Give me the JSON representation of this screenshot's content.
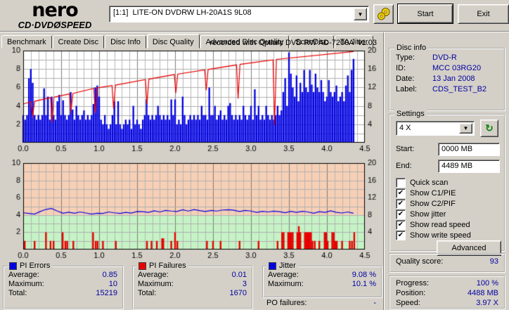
{
  "window": {
    "logo_top": "nero",
    "logo_cd": "CD·DVD",
    "logo_disc": "Ø",
    "logo_speed": "SPEED",
    "drive_select": "[1:1]  LITE-ON DVDRW LH-20A1S 9L08",
    "start_button": "Start",
    "exit_button": "Exit"
  },
  "icons": {
    "dropdown_arrow": "▼",
    "refresh": "↻",
    "check": "✔"
  },
  "colors": {
    "value_text": "#0000a0",
    "chart_blue": "#0000e0",
    "chart_red": "#e80000",
    "zone_green": "#c5f3c5",
    "zone_pink": "#f7cfb5",
    "window_gray": "#d4d0c8"
  },
  "tabs": {
    "items": [
      "Benchmark",
      "Create Disc",
      "Disc Info",
      "Disc Quality",
      "Advanced Disc Quality",
      "ScanDisc",
      "TA Jitter"
    ],
    "active": "Disc Quality"
  },
  "chart_title": "recorded with Optiarc DVD RW AD-7200A  v1.03",
  "disc_info": {
    "title": "Disc info",
    "rows": [
      {
        "label": "Type:",
        "value": "DVD-R"
      },
      {
        "label": "ID:",
        "value": "MCC 03RG20"
      },
      {
        "label": "Date:",
        "value": "13 Jan 2008"
      },
      {
        "label": "Label:",
        "value": "CDS_TEST_B2"
      }
    ]
  },
  "settings": {
    "title": "Settings",
    "speed_value": "4 X",
    "start_label": "Start:",
    "start_value": "0000 MB",
    "end_label": "End:",
    "end_value": "4489 MB",
    "checkboxes": [
      {
        "label": "Quick scan",
        "checked": false,
        "mark": ""
      },
      {
        "label": "Show C1/PIE",
        "checked": true,
        "mark": "✔"
      },
      {
        "label": "Show C2/PIF",
        "checked": true,
        "mark": "✔"
      },
      {
        "label": "Show jitter",
        "checked": true,
        "mark": "✔"
      },
      {
        "label": "Show read speed",
        "checked": true,
        "mark": "✔"
      },
      {
        "label": "Show write speed",
        "checked": true,
        "mark": "✔"
      }
    ],
    "advanced_button": "Advanced"
  },
  "quality": {
    "label": "Quality score:",
    "value": "93"
  },
  "progress": {
    "rows": [
      {
        "label": "Progress:",
        "value": "100 %"
      },
      {
        "label": "Position:",
        "value": "4488 MB"
      },
      {
        "label": "Speed:",
        "value": "3.97 X"
      }
    ]
  },
  "legend_panels": [
    {
      "title": "PI Errors",
      "color": "#0000e0",
      "rows": [
        {
          "label": "Average:",
          "value": "0.85"
        },
        {
          "label": "Maximum:",
          "value": "10"
        },
        {
          "label": "Total:",
          "value": "15219"
        }
      ]
    },
    {
      "title": "PI Failures",
      "color": "#e80000",
      "rows": [
        {
          "label": "Average:",
          "value": "0.01"
        },
        {
          "label": "Maximum:",
          "value": "3"
        },
        {
          "label": "Total:",
          "value": "1670"
        }
      ]
    },
    {
      "title": "Jitter",
      "color": "#0000e0",
      "rows": [
        {
          "label": "Average:",
          "value": "9.08 %"
        },
        {
          "label": "Maximum:",
          "value": "10.1 %"
        }
      ],
      "footer": {
        "label": "PO failures:",
        "value": "-"
      }
    }
  ],
  "chart_data": [
    {
      "type": "bar",
      "title": "recorded with Optiarc DVD RW AD-7200A  v1.03",
      "x_range": [
        0,
        4.5
      ],
      "x_ticks": [
        0,
        0.5,
        1,
        1.5,
        2,
        2.5,
        3,
        3.5,
        4,
        4.5
      ],
      "x_minor": 0.1,
      "y_left": {
        "range": [
          0,
          10
        ],
        "ticks": [
          2,
          4,
          6,
          8,
          10
        ]
      },
      "y_right": {
        "range": [
          0,
          20
        ],
        "ticks": [
          4,
          8,
          12,
          16,
          20
        ]
      },
      "stats": {
        "pi_errors_average": 0.85,
        "pi_errors_maximum": 10,
        "pi_errors_total": 15219
      },
      "series": [
        {
          "name": "PI Errors",
          "kind": "bars-dense",
          "axis": "left",
          "color": "#0000e0",
          "start": 0,
          "dx": 0.025,
          "heights": [
            3,
            2.5,
            3,
            7,
            8,
            6.5,
            3,
            2.5,
            3,
            2.5,
            3,
            5.9,
            3,
            5,
            2.5,
            5,
            3,
            2.5,
            4.5,
            5.2,
            3,
            4.6,
            3,
            2.5,
            3,
            5.5,
            3.6,
            2.5,
            4,
            3,
            2.5,
            3,
            3.5,
            2.5,
            3,
            2.5,
            3,
            4.2,
            6,
            6.2,
            5,
            2.5,
            2,
            3,
            2,
            1.5,
            2,
            3,
            4.5,
            2,
            4.5,
            2,
            1.5,
            2,
            2.5,
            2,
            2.5,
            1.5,
            4,
            2,
            2.5,
            2,
            1.5,
            2.5,
            3,
            4.7,
            3,
            2.5,
            3,
            2.5,
            3,
            4,
            3,
            2.5,
            3,
            2.5,
            3,
            2.5,
            4.7,
            3,
            4.7,
            2,
            2.5,
            2,
            5,
            3,
            2,
            2.5,
            3,
            2.5,
            3,
            2.5,
            3,
            2.5,
            4,
            3,
            3,
            2.5,
            6,
            3,
            3,
            4,
            2.5,
            3,
            3.5,
            2.5,
            3,
            2.5,
            4,
            4.3,
            3,
            2.5,
            3,
            2.5,
            3,
            2.5,
            4,
            3,
            2.5,
            3,
            4,
            2.5,
            5.8,
            3,
            4,
            2.5,
            3,
            2.5,
            4,
            3,
            2.5,
            3,
            2.5,
            3,
            4,
            3,
            3.5,
            5.5,
            7,
            4,
            9.8,
            7.5,
            6,
            5,
            7.3,
            4.5,
            6.5,
            5.5,
            7.9,
            6,
            5.5,
            7.9,
            6.3,
            5.5,
            7.5,
            6,
            5.5,
            6.8,
            5.5,
            4.5,
            5,
            6.8,
            5.5,
            5,
            5.5,
            6.2,
            4.5,
            5,
            5.5,
            4.5,
            6.2,
            7.3,
            5.5,
            7.9,
            9.1
          ]
        },
        {
          "name": "Write speed",
          "kind": "line",
          "axis": "right",
          "color": "#e80000",
          "points": [
            [
              0,
              8.4
            ],
            [
              0.1,
              8.9
            ],
            [
              0.125,
              5.8
            ],
            [
              0.15,
              9.0
            ],
            [
              0.36,
              9.8
            ],
            [
              0.38,
              4.4
            ],
            [
              0.405,
              9.9
            ],
            [
              0.61,
              10.6
            ],
            [
              0.63,
              7.0
            ],
            [
              0.655,
              10.7
            ],
            [
              0.93,
              11.8
            ],
            [
              0.95,
              6.4
            ],
            [
              0.975,
              11.9
            ],
            [
              1.17,
              12.4
            ],
            [
              1.19,
              7.4
            ],
            [
              1.215,
              12.5
            ],
            [
              1.61,
              13.7
            ],
            [
              1.63,
              8.4
            ],
            [
              1.655,
              13.8
            ],
            [
              1.99,
              14.8
            ],
            [
              2.01,
              10.8
            ],
            [
              2.035,
              14.9
            ],
            [
              2.39,
              15.8
            ],
            [
              2.41,
              11.4
            ],
            [
              2.435,
              15.9
            ],
            [
              2.81,
              16.9
            ],
            [
              2.83,
              9.6
            ],
            [
              2.855,
              17.0
            ],
            [
              3.29,
              18.0
            ],
            [
              3.31,
              3.8
            ],
            [
              3.335,
              18.1
            ],
            [
              4.35,
              19.8
            ]
          ]
        }
      ]
    },
    {
      "type": "bar",
      "x_range": [
        0,
        4.5
      ],
      "x_ticks": [
        0,
        0.5,
        1,
        1.5,
        2,
        2.5,
        3,
        3.5,
        4,
        4.5
      ],
      "x_minor": 0.1,
      "y_left": {
        "range": [
          0,
          10
        ],
        "ticks": [
          2,
          4,
          6,
          8,
          10
        ]
      },
      "y_right": {
        "range": [
          0,
          20
        ],
        "ticks": [
          4,
          8,
          12,
          16,
          20
        ]
      },
      "zones": [
        {
          "from": 0,
          "to": 4,
          "color": "#c5f3c5"
        },
        {
          "from": 4,
          "to": 10,
          "color": "#f7cfb5"
        }
      ],
      "stats": {
        "pi_failures_average": 0.01,
        "pi_failures_maximum": 3,
        "pi_failures_total": 1670,
        "jitter_average_pct": 9.08,
        "jitter_maximum_pct": 10.1
      },
      "series": [
        {
          "name": "PI Failures",
          "kind": "bars",
          "axis": "left",
          "color": "#e80000",
          "points": [
            [
              0.02,
              1
            ],
            [
              0.15,
              1
            ],
            [
              0.3,
              2
            ],
            [
              0.36,
              1
            ],
            [
              0.4,
              1
            ],
            [
              0.52,
              2
            ],
            [
              0.555,
              1
            ],
            [
              0.58,
              1
            ],
            [
              0.66,
              1
            ],
            [
              0.92,
              2
            ],
            [
              0.955,
              1
            ],
            [
              0.98,
              1
            ],
            [
              1.05,
              1
            ],
            [
              1.22,
              1
            ],
            [
              1.63,
              1
            ],
            [
              1.69,
              1
            ],
            [
              1.76,
              1
            ],
            [
              1.83,
              1.3
            ],
            [
              1.845,
              1.3
            ],
            [
              1.95,
              1
            ],
            [
              2.0,
              2
            ],
            [
              2.03,
              1
            ],
            [
              2.42,
              1
            ],
            [
              2.5,
              1
            ],
            [
              2.6,
              1
            ],
            [
              2.85,
              1
            ],
            [
              3.1,
              1
            ],
            [
              3.35,
              1
            ],
            [
              3.41,
              2
            ],
            [
              3.43,
              2
            ],
            [
              3.49,
              2
            ],
            [
              3.51,
              2
            ],
            [
              3.53,
              2
            ],
            [
              3.55,
              2
            ],
            [
              3.61,
              2
            ],
            [
              3.63,
              2.7
            ],
            [
              3.65,
              2
            ],
            [
              3.71,
              2
            ],
            [
              3.73,
              2
            ],
            [
              3.75,
              2
            ],
            [
              3.77,
              2
            ],
            [
              3.79,
              2
            ],
            [
              3.81,
              1
            ],
            [
              3.84,
              1
            ],
            [
              3.9,
              1
            ],
            [
              3.97,
              2
            ],
            [
              3.99,
              2
            ],
            [
              4.01,
              1
            ],
            [
              4.07,
              2
            ],
            [
              4.09,
              2
            ],
            [
              4.11,
              1
            ],
            [
              4.13,
              1
            ],
            [
              4.2,
              1
            ],
            [
              4.3,
              1
            ],
            [
              4.33,
              1
            ],
            [
              4.36,
              2
            ]
          ]
        },
        {
          "name": "Jitter",
          "kind": "line",
          "axis": "right",
          "color": "#0000e0",
          "wiggle": true,
          "points": [
            [
              0,
              8.3
            ],
            [
              0.075,
              8.35
            ],
            [
              0.15,
              8.4
            ],
            [
              0.225,
              8.7
            ],
            [
              0.3,
              9.4
            ],
            [
              0.375,
              9.3
            ],
            [
              0.45,
              8.9
            ],
            [
              0.525,
              8.6
            ],
            [
              0.6,
              8.55
            ],
            [
              0.675,
              8.5
            ],
            [
              0.75,
              8.5
            ],
            [
              0.825,
              8.45
            ],
            [
              0.9,
              8.4
            ],
            [
              0.975,
              8.3
            ],
            [
              1.05,
              8.45
            ],
            [
              1.125,
              8.5
            ],
            [
              1.2,
              8.5
            ],
            [
              1.275,
              8.55
            ],
            [
              1.35,
              8.5
            ],
            [
              1.425,
              8.55
            ],
            [
              1.5,
              8.6
            ],
            [
              1.575,
              8.75
            ],
            [
              1.65,
              8.8
            ],
            [
              1.725,
              8.85
            ],
            [
              1.8,
              8.8
            ],
            [
              1.875,
              8.85
            ],
            [
              1.95,
              8.9
            ],
            [
              2.025,
              9.0
            ],
            [
              2.1,
              9.1
            ],
            [
              2.175,
              9.0
            ],
            [
              2.25,
              9.05
            ],
            [
              2.325,
              9.0
            ],
            [
              2.4,
              9.0
            ],
            [
              2.475,
              8.95
            ],
            [
              2.55,
              9.0
            ],
            [
              2.625,
              8.95
            ],
            [
              2.7,
              9.2
            ],
            [
              2.75,
              9.35
            ],
            [
              2.775,
              9.0
            ],
            [
              2.85,
              8.9
            ],
            [
              2.925,
              8.85
            ],
            [
              3.0,
              8.9
            ],
            [
              3.075,
              8.8
            ],
            [
              3.15,
              8.75
            ],
            [
              3.225,
              8.8
            ],
            [
              3.3,
              8.7
            ],
            [
              3.375,
              8.75
            ],
            [
              3.45,
              8.7
            ],
            [
              3.525,
              8.75
            ],
            [
              3.6,
              8.7
            ],
            [
              3.675,
              8.65
            ],
            [
              3.75,
              8.7
            ],
            [
              3.825,
              8.6
            ],
            [
              3.9,
              8.65
            ],
            [
              3.975,
              8.7
            ],
            [
              4.05,
              8.75
            ],
            [
              4.125,
              8.6
            ],
            [
              4.2,
              8.65
            ],
            [
              4.275,
              8.6
            ],
            [
              4.35,
              8.5
            ]
          ]
        }
      ]
    }
  ]
}
